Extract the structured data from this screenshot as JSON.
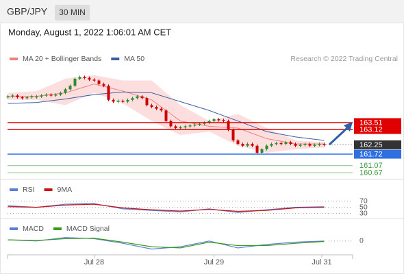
{
  "header": {
    "symbol": "GBP/JPY",
    "timeframe": "30 MIN",
    "datetime": "Monday, August 1, 2022 1:06:01 AM CET"
  },
  "chart_data": [
    {
      "type": "candlestick",
      "credit": "Research © 2022 Trading Central",
      "xlim": [
        -0.5,
        72.5
      ],
      "xticks": [
        {
          "value": 18,
          "label": "Jul 28"
        },
        {
          "value": 43,
          "label": "Jul 29"
        },
        {
          "value": 65.5,
          "label": "Jul 31"
        }
      ],
      "ylim": [
        160.44,
        166.58
      ],
      "up_color": "#2e8b2e",
      "down_color": "#cc0000",
      "closes": [
        165.0,
        165.05,
        164.95,
        164.9,
        164.95,
        165.0,
        165.0,
        165.05,
        165.1,
        165.05,
        165.1,
        165.2,
        165.4,
        165.6,
        166.0,
        166.1,
        166.05,
        165.95,
        165.9,
        165.7,
        165.6,
        164.8,
        164.7,
        164.75,
        164.7,
        164.8,
        164.9,
        165.0,
        164.9,
        164.5,
        164.4,
        164.3,
        164.2,
        163.6,
        163.3,
        163.2,
        163.25,
        163.3,
        163.35,
        163.4,
        163.45,
        163.5,
        163.6,
        163.7,
        163.65,
        163.6,
        163.1,
        162.5,
        162.3,
        162.2,
        162.3,
        162.2,
        161.8,
        162.0,
        162.2,
        162.3,
        162.35,
        162.3,
        162.4,
        162.3,
        162.2,
        162.25,
        162.3,
        162.2,
        162.25,
        162.3,
        162.25
      ],
      "x": [
        0,
        6,
        12,
        18,
        24,
        30,
        36,
        42,
        48,
        54,
        60,
        66
      ],
      "series": [
        {
          "name": "MA 20 + Bollinger Bands",
          "color": "#f08080",
          "values": [
            165.0,
            165.0,
            165.2,
            165.7,
            165.3,
            164.8,
            163.6,
            163.3,
            163.2,
            162.6,
            162.3,
            162.3
          ]
        },
        {
          "name": "MA 50",
          "color": "#3a5fa0",
          "values": [
            164.6,
            164.65,
            164.85,
            165.1,
            165.25,
            165.2,
            164.7,
            164.2,
            163.6,
            163.0,
            162.7,
            162.5
          ]
        }
      ],
      "bands": {
        "color": "#fbd0d0",
        "upper": [
          165.2,
          165.3,
          166.0,
          166.2,
          165.9,
          165.9,
          164.5,
          163.6,
          164.0,
          163.2,
          162.5,
          162.4
        ],
        "lower": [
          164.8,
          164.8,
          164.5,
          165.2,
          164.6,
          163.6,
          162.8,
          163.0,
          162.2,
          161.8,
          162.0,
          162.1
        ]
      },
      "levels": [
        {
          "value": 163.51,
          "color": "#e00000",
          "boxed": true
        },
        {
          "value": 163.12,
          "color": "#e00000",
          "boxed": true
        },
        {
          "value": 162.25,
          "color": "#333333",
          "boxed": true
        },
        {
          "value": 161.72,
          "color": "#2f6fe0",
          "boxed": true
        },
        {
          "value": 161.07,
          "color": "#3a9a3a",
          "boxed": false
        },
        {
          "value": 160.67,
          "color": "#3a9a3a",
          "boxed": false
        }
      ]
    },
    {
      "type": "line",
      "ylim": [
        16,
        100
      ],
      "yticks": [
        70,
        50,
        30
      ],
      "x": [
        0,
        6,
        12,
        18,
        24,
        30,
        36,
        42,
        48,
        54,
        60,
        66
      ],
      "series": [
        {
          "name": "RSI",
          "color": "#5a7fd8",
          "values": [
            55,
            50,
            60,
            62,
            45,
            40,
            35,
            45,
            33,
            42,
            50,
            52
          ]
        },
        {
          "name": "9MA",
          "color": "#d01010",
          "values": [
            52,
            50,
            57,
            60,
            48,
            42,
            38,
            43,
            37,
            40,
            48,
            50
          ]
        }
      ]
    },
    {
      "type": "line",
      "ylim": [
        -0.6,
        0.5
      ],
      "yticks": [
        0
      ],
      "x": [
        0,
        6,
        12,
        18,
        24,
        30,
        36,
        42,
        48,
        54,
        60,
        66
      ],
      "series": [
        {
          "name": "MACD",
          "color": "#5a7fd8",
          "values": [
            0.05,
            0.0,
            0.15,
            0.1,
            -0.1,
            -0.35,
            -0.25,
            0.0,
            -0.3,
            -0.15,
            -0.05,
            0.0
          ]
        },
        {
          "name": "MACD Signal",
          "color": "#3a9a1a",
          "values": [
            0.05,
            0.02,
            0.1,
            0.12,
            -0.05,
            -0.25,
            -0.3,
            -0.05,
            -0.2,
            -0.2,
            -0.1,
            -0.02
          ]
        }
      ]
    }
  ]
}
